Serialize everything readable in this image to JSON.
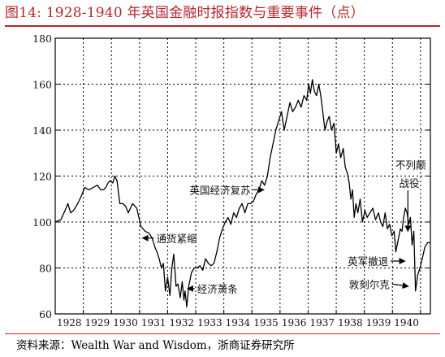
{
  "header": {
    "title": "图14:  1928-1940 年英国金融时报指数与重要事件（点）"
  },
  "footer": {
    "source": "资料来源：Wealth War and Wisdom，浙商证券研究所"
  },
  "chart_data": {
    "type": "line",
    "title": "",
    "xlabel": "",
    "ylabel": "",
    "ylim": [
      60,
      180
    ],
    "xlim": [
      1927.5,
      1940.85
    ],
    "yticks": [
      60,
      80,
      100,
      120,
      140,
      160,
      180
    ],
    "xticks": [
      "1928",
      "1929",
      "1930",
      "1931",
      "1932",
      "1933",
      "1934",
      "1935",
      "1936",
      "1937",
      "1938",
      "1939",
      "1940"
    ],
    "grid": true,
    "line_color": "#000000",
    "series": [
      {
        "name": "",
        "x": [
          1927.5,
          1927.7,
          1927.85,
          1927.95,
          1928.05,
          1928.15,
          1928.3,
          1928.42,
          1928.55,
          1928.7,
          1928.85,
          1929.0,
          1929.12,
          1929.22,
          1929.3,
          1929.38,
          1929.45,
          1929.55,
          1929.62,
          1929.7,
          1929.8,
          1929.9,
          1930.0,
          1930.1,
          1930.25,
          1930.4,
          1930.55,
          1930.7,
          1930.85,
          1930.95,
          1931.05,
          1931.12,
          1931.2,
          1931.28,
          1931.35,
          1931.42,
          1931.5,
          1931.58,
          1931.65,
          1931.72,
          1931.8,
          1931.87,
          1931.95,
          1932.02,
          1932.08,
          1932.12,
          1932.18,
          1932.25,
          1932.35,
          1932.45,
          1932.55,
          1932.65,
          1932.75,
          1932.85,
          1932.95,
          1933.05,
          1933.15,
          1933.25,
          1933.35,
          1933.45,
          1933.55,
          1933.65,
          1933.75,
          1933.85,
          1933.95,
          1934.05,
          1934.15,
          1934.25,
          1934.35,
          1934.45,
          1934.55,
          1934.65,
          1934.75,
          1934.85,
          1934.95,
          1935.05,
          1935.15,
          1935.25,
          1935.35,
          1935.45,
          1935.55,
          1935.65,
          1935.75,
          1935.85,
          1935.95,
          1936.05,
          1936.15,
          1936.25,
          1936.35,
          1936.45,
          1936.52,
          1936.58,
          1936.65,
          1936.72,
          1936.8,
          1936.88,
          1936.95,
          1937.02,
          1937.1,
          1937.18,
          1937.25,
          1937.33,
          1937.42,
          1937.5,
          1937.58,
          1937.66,
          1937.75,
          1937.82,
          1937.9,
          1937.96,
          1938.02,
          1938.08,
          1938.14,
          1938.2,
          1938.27,
          1938.35,
          1938.43,
          1938.52,
          1938.6,
          1938.7,
          1938.8,
          1938.9,
          1939.0,
          1939.08,
          1939.16,
          1939.24,
          1939.32,
          1939.4,
          1939.48,
          1939.56,
          1939.62,
          1939.7,
          1939.78,
          1939.84,
          1939.9,
          1939.96,
          1940.02,
          1940.08,
          1940.14,
          1940.2,
          1940.26,
          1940.32,
          1940.4,
          1940.48,
          1940.56,
          1940.65,
          1940.75,
          1940.85
        ],
        "values": [
          100,
          101,
          105,
          108,
          104,
          105,
          108,
          111,
          115,
          114,
          115,
          116,
          114,
          114,
          115,
          117,
          118,
          117,
          120,
          118,
          108,
          108,
          107,
          104,
          108,
          106,
          98,
          96,
          95,
          93,
          89,
          87,
          84,
          80,
          82,
          70,
          76,
          68,
          80,
          86,
          72,
          73,
          67,
          74,
          66,
          70,
          63,
          72,
          78,
          80,
          80,
          81,
          79,
          84,
          82,
          81,
          82,
          87,
          93,
          97,
          100,
          102,
          99,
          104,
          102,
          106,
          108,
          104,
          108,
          108,
          109,
          112,
          114,
          118,
          116,
          120,
          128,
          134,
          140,
          144,
          148,
          140,
          146,
          152,
          148,
          150,
          153,
          150,
          155,
          153,
          160,
          156,
          162,
          157,
          155,
          160,
          155,
          148,
          140,
          144,
          146,
          140,
          143,
          130,
          134,
          128,
          132,
          124,
          121,
          117,
          110,
          114,
          102,
          108,
          104,
          110,
          100,
          105,
          102,
          104,
          106,
          101,
          104,
          100,
          98,
          104,
          97,
          99,
          94,
          96,
          87,
          92,
          97,
          96,
          102,
          106,
          104,
          99,
          102,
          90,
          96,
          70,
          77,
          80,
          84,
          89,
          91,
          91
        ]
      }
    ],
    "annotations": [
      {
        "text": "通货紧缩",
        "x": 1930.55,
        "y": 93,
        "text_x": 1931.1,
        "text_y": 93,
        "arrow": "left"
      },
      {
        "text": "经济萧条",
        "x": 1932.15,
        "y": 71,
        "text_x": 1932.55,
        "text_y": 71,
        "arrow": "left"
      },
      {
        "text": "英国经济复苏",
        "x": 1934.98,
        "y": 114,
        "text_x": 1934.45,
        "text_y": 114,
        "arrow": "right"
      },
      {
        "text": "英军撤退",
        "x": 1940.0,
        "y": 83,
        "text_x": 1939.35,
        "text_y": 83,
        "arrow": "right"
      },
      {
        "text": "敦刻尔克",
        "x": 1940.12,
        "y": 72,
        "text_x": 1939.4,
        "text_y": 73,
        "arrow": "right"
      },
      {
        "text": "不列颠",
        "x": 1940.05,
        "y": 0,
        "text_x": 1940.15,
        "text_y": 125,
        "arrow": "none"
      },
      {
        "text": "战役",
        "x": 1940.05,
        "y": 0,
        "text_x": 1940.1,
        "text_y": 117,
        "arrow": "down",
        "arrow_to_y": 96
      }
    ]
  }
}
